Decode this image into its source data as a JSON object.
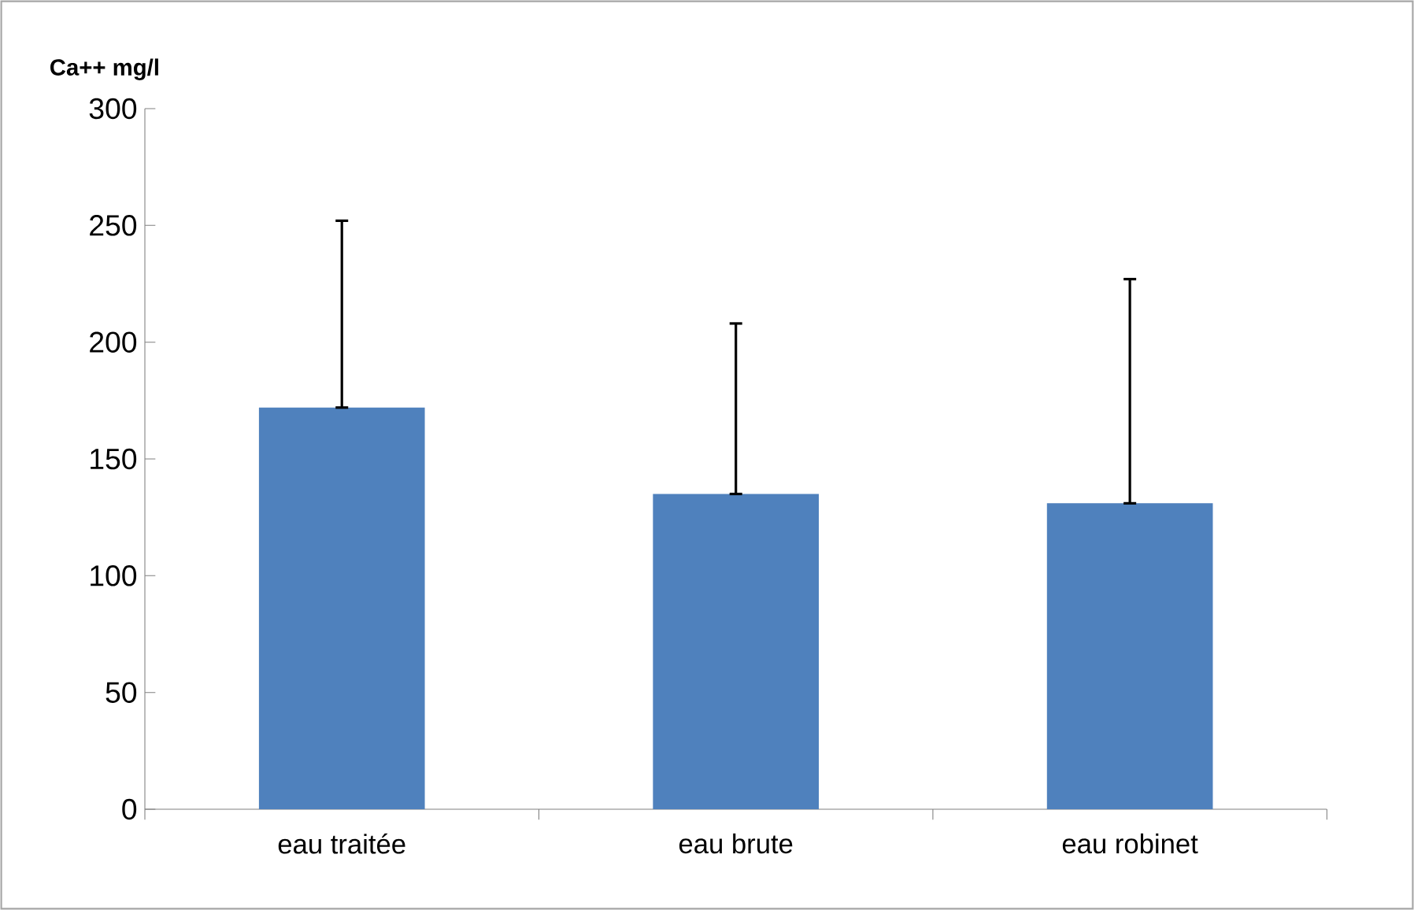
{
  "chart_data": {
    "type": "bar",
    "ylabel": "Ca++ mg/l",
    "categories": [
      "eau traitée",
      "eau brute",
      "eau robinet"
    ],
    "values": [
      172,
      135,
      131
    ],
    "errors": [
      [
        172,
        252
      ],
      [
        135,
        208
      ],
      [
        131,
        227
      ]
    ],
    "color": "#4f81bd",
    "ylim": [
      0,
      300
    ],
    "yticks": [
      0,
      50,
      100,
      150,
      200,
      250,
      300
    ],
    "grid": false
  }
}
